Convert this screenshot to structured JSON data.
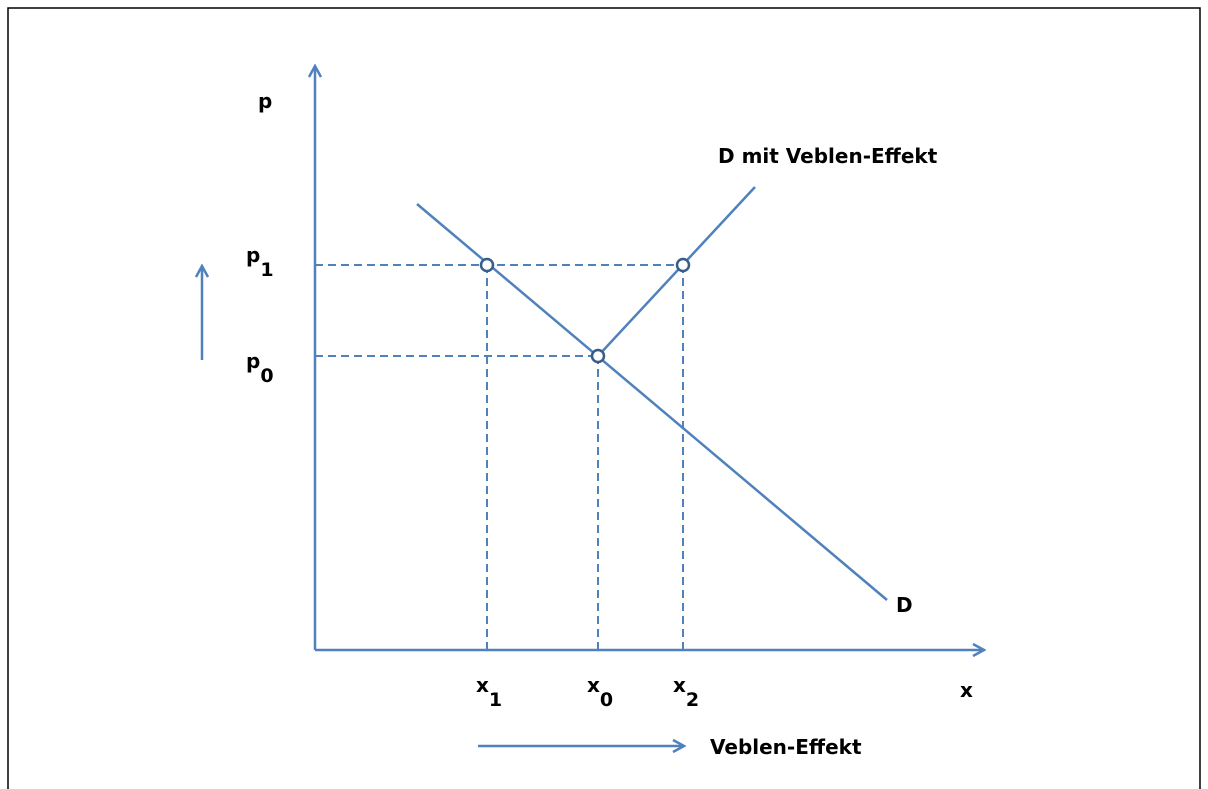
{
  "axes": {
    "y_label": "p",
    "x_label": "x"
  },
  "price_labels": [
    {
      "base": "p",
      "sub": "1"
    },
    {
      "base": "p",
      "sub": "0"
    }
  ],
  "quantity_labels": [
    {
      "base": "x",
      "sub": "1"
    },
    {
      "base": "x",
      "sub": "0"
    },
    {
      "base": "x",
      "sub": "2"
    }
  ],
  "curves": {
    "demand": "D",
    "veblen_demand": "D mit Veblen-Effekt"
  },
  "effect_label": "Veblen-Effekt"
}
